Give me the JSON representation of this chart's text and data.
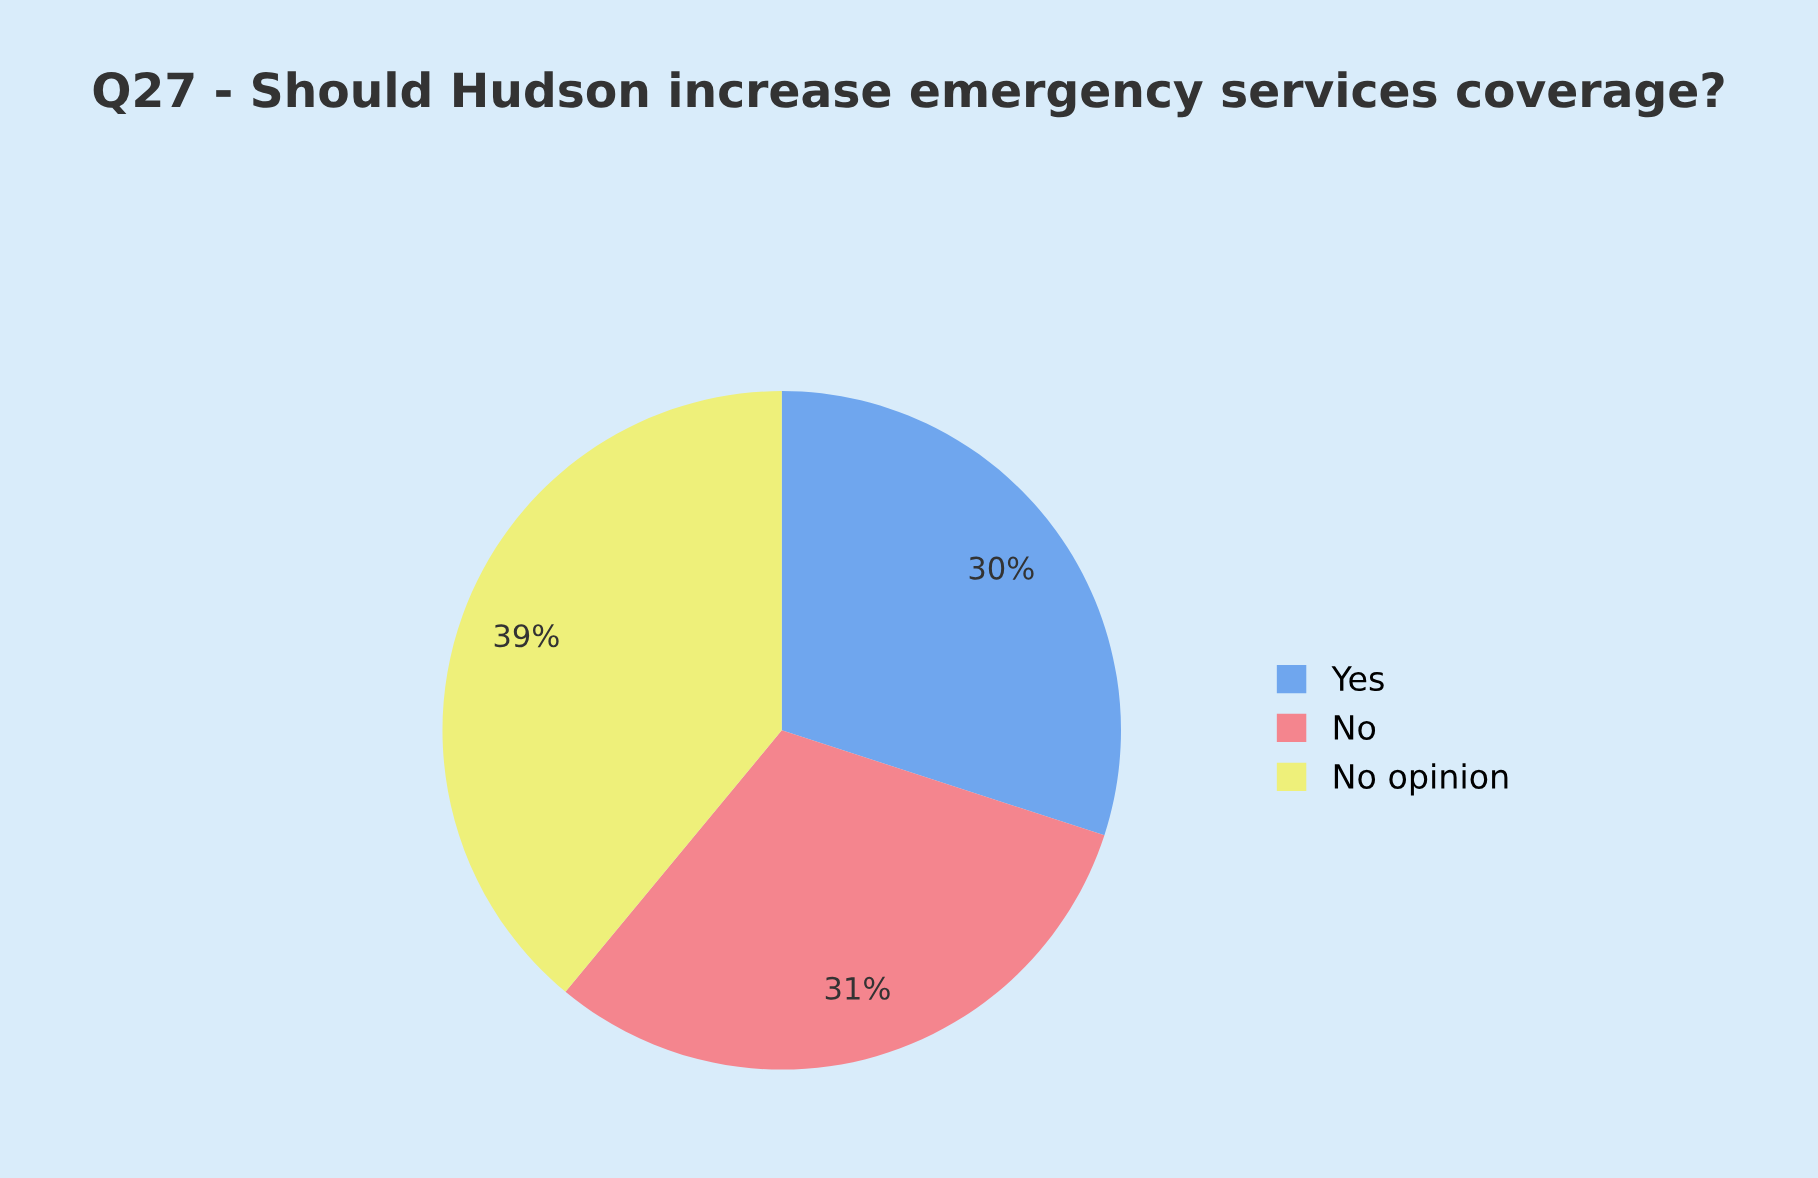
{
  "chart_data": {
    "type": "pie",
    "title": "Q27 - Should Hudson increase emergency services coverage?",
    "categories": [
      "Yes",
      "No",
      "No opinion"
    ],
    "values": [
      30,
      31,
      39
    ],
    "colors": [
      "#6fa6ee",
      "#f4858e",
      "#eef07a"
    ],
    "value_labels": [
      "30%",
      "31%",
      "39%"
    ],
    "legend": "right"
  }
}
